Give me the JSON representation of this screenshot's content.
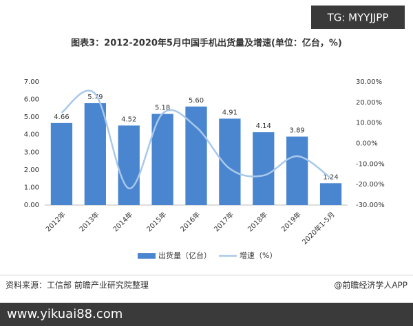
{
  "header_tag": "TG: MYYJJPP",
  "source": "资料来源：工信部 前瞻产业研究院整理",
  "app_credit": "@前瞻经济学人APP",
  "website": "www.yikuai88.com",
  "chart_data": {
    "type": "bar-line",
    "title": "图表3：2012-2020年5月中国手机出货量及增速(单位：亿台，%)",
    "categories": [
      "2012年",
      "2013年",
      "2014年",
      "2015年",
      "2016年",
      "2017年",
      "2018年",
      "2019年",
      "2020年1-5月"
    ],
    "series": [
      {
        "name": "出货量（亿台）",
        "type": "bar",
        "color": "#4a86d0",
        "values": [
          4.66,
          5.79,
          4.52,
          5.18,
          5.6,
          4.91,
          4.14,
          3.89,
          1.24
        ],
        "value_labels": [
          "4.66",
          "5.79",
          "4.52",
          "5.18",
          "5.60",
          "4.91",
          "4.14",
          "3.89",
          "1.24"
        ]
      },
      {
        "name": "增速（%）",
        "type": "line",
        "axis": "y2",
        "color": "#a9c8ea",
        "values": [
          15,
          24.2,
          -21.9,
          14.6,
          8,
          -12.3,
          -15.6,
          -6.2,
          -16.9
        ]
      }
    ],
    "ylim": [
      0,
      7
    ],
    "yticks": [
      {
        "value": 0,
        "label": "0.00"
      },
      {
        "value": 1,
        "label": "1.00"
      },
      {
        "value": 2,
        "label": "2.00"
      },
      {
        "value": 3,
        "label": "3.00"
      },
      {
        "value": 4,
        "label": "4.00"
      },
      {
        "value": 5,
        "label": "5.00"
      },
      {
        "value": 6,
        "label": "6.00"
      },
      {
        "value": 7,
        "label": "7.00"
      }
    ],
    "y2lim": [
      -30,
      30
    ],
    "y2ticks": [
      {
        "value": -30,
        "label": "-30.00%"
      },
      {
        "value": -20,
        "label": "-20.00%"
      },
      {
        "value": -10,
        "label": "-10.00%"
      },
      {
        "value": 0,
        "label": "0.00%"
      },
      {
        "value": 10,
        "label": "10.00%"
      },
      {
        "value": 20,
        "label": "20.00%"
      },
      {
        "value": 30,
        "label": "30.00%"
      }
    ]
  }
}
